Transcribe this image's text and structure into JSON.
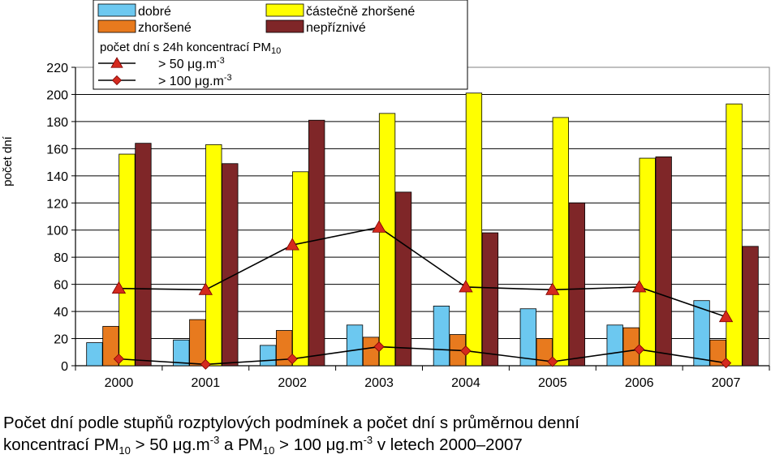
{
  "chart_data": {
    "type": "bar",
    "categories": [
      "2000",
      "2001",
      "2002",
      "2003",
      "2004",
      "2005",
      "2006",
      "2007"
    ],
    "series": [
      {
        "name": "dobré",
        "values": [
          17,
          19,
          15,
          30,
          44,
          42,
          30,
          48
        ],
        "color": "#6cc8f0"
      },
      {
        "name": "zhoršené",
        "values": [
          29,
          34,
          26,
          21,
          23,
          20,
          28,
          19
        ],
        "color": "#e87a1e"
      },
      {
        "name": "částečně zhoršené",
        "values": [
          156,
          163,
          143,
          186,
          201,
          183,
          153,
          193
        ],
        "color": "#ffff00"
      },
      {
        "name": "nepříznivé",
        "values": [
          164,
          149,
          181,
          128,
          98,
          120,
          154,
          88
        ],
        "color": "#7f2628"
      }
    ],
    "lines": [
      {
        "name": "> 50 μg.m-3",
        "values": [
          57,
          56,
          89,
          102,
          58,
          56,
          58,
          36
        ],
        "marker": "triangle",
        "color": "#d42a1e"
      },
      {
        "name": "> 100 μg.m-3",
        "values": [
          5,
          1,
          5,
          14,
          11,
          3,
          12,
          2
        ],
        "marker": "diamond",
        "color": "#d42a1e"
      }
    ],
    "ylabel": "počet dní",
    "ylim": [
      0,
      220
    ],
    "ytick_step": 20,
    "yticks": [
      "0",
      "20",
      "40",
      "60",
      "80",
      "100",
      "120",
      "140",
      "160",
      "180",
      "200",
      "220"
    ],
    "grid": "horizontal",
    "legend": {
      "placement": "top",
      "lines_title": "počet dní s 24h koncentrací PM",
      "lines_title_sub": "10",
      "line_labels": [
        {
          "text": "> 50 μg.m",
          "sup": "-3"
        },
        {
          "text": "> 100 μg.m",
          "sup": "-3"
        }
      ]
    }
  },
  "caption": {
    "line1": "Počet dní podle stupňů rozptylových podmínek a počet dní s průměrnou denní",
    "l2_a": "koncentrací PM",
    "l2_b": "10",
    "l2_c": " > 50 μg.m",
    "l2_d": "-3",
    "l2_e": " a PM",
    "l2_f": "10",
    "l2_g": " > 100 μg.m",
    "l2_h": "-3",
    "l2_i": " v letech 2000–2007"
  }
}
